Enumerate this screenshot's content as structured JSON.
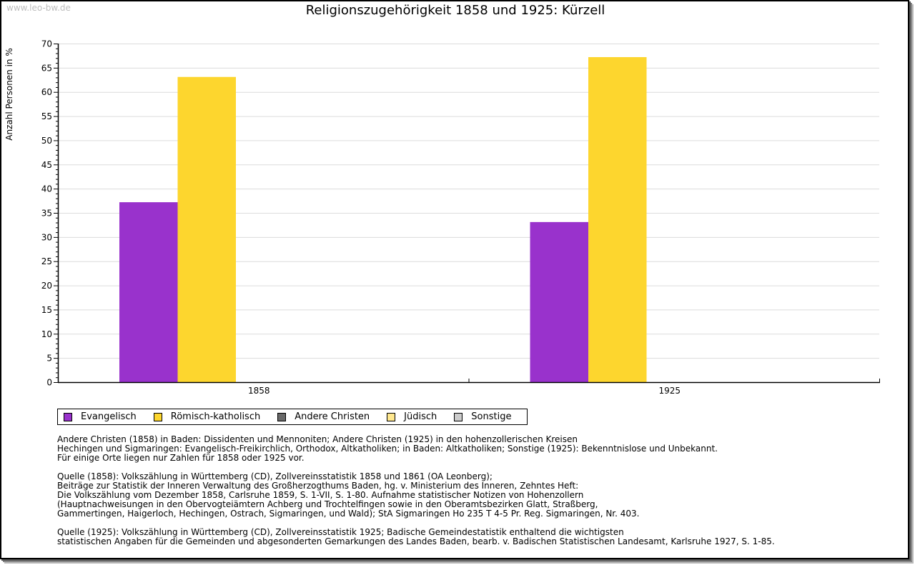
{
  "watermark": "www.leo-bw.de",
  "chart_data": {
    "type": "bar",
    "title": "Religionszugehörigkeit 1858 und 1925: Kürzell",
    "xlabel": "",
    "ylabel": "Anzahl Personen in %",
    "ylim": [
      0,
      70
    ],
    "yticks": [
      0,
      5,
      10,
      15,
      20,
      25,
      30,
      35,
      40,
      45,
      50,
      55,
      60,
      65,
      70
    ],
    "grid": true,
    "categories": [
      "1858",
      "1925"
    ],
    "series": [
      {
        "name": "Evangelisch",
        "color": "#9932cc",
        "values": [
          37.2,
          33.1
        ]
      },
      {
        "name": "Römisch-katholisch",
        "color": "#fdd62e",
        "values": [
          63.1,
          67.2
        ]
      },
      {
        "name": "Andere Christen",
        "color": "#696969",
        "values": [
          0,
          0
        ]
      },
      {
        "name": "Jüdisch",
        "color": "#ffe88f",
        "values": [
          0,
          0
        ]
      },
      {
        "name": "Sonstige",
        "color": "#cccccc",
        "values": [
          0,
          0
        ]
      }
    ],
    "legend_position": "bottom-left"
  },
  "notes": [
    "Andere Christen (1858) in Baden: Dissidenten und Mennoniten; Andere Christen (1925) in den hohenzollerischen Kreisen\nHechingen und Sigmaringen: Evangelisch-Freikirchlich, Orthodox, Altkatholiken; in Baden: Altkatholiken; Sonstige (1925): Bekenntnislose und Unbekannt.\nFür einige Orte liegen nur Zahlen für 1858 oder 1925 vor.",
    "Quelle (1858): Volkszählung in Württemberg (CD), Zollvereinsstatistik 1858 und 1861 (OA Leonberg);\nBeiträge zur Statistik der Inneren Verwaltung des Großherzogthums Baden, hg. v. Ministerium des Inneren, Zehntes Heft:\nDie Volkszählung vom Dezember 1858, Carlsruhe 1859, S. 1-VII, S. 1-80. Aufnahme statistischer Notizen von Hohenzollern\n(Hauptnachweisungen in den Obervogteiämtern Achberg und Trochtelfingen sowie in den Oberamtsbezirken Glatt, Straßberg,\nGammertingen, Haigerloch, Hechingen, Ostrach, Sigmaringen, und Wald); StA Sigmaringen Ho 235 T 4-5 Pr. Reg. Sigmaringen, Nr. 403.",
    "Quelle (1925): Volkszählung in Württemberg (CD), Zollvereinsstatistik 1925; Badische Gemeindestatistik enthaltend die wichtigsten\nstatistischen Angaben für die Gemeinden und abgesonderten Gemarkungen des Landes Baden, bearb. v. Badischen Statistischen Landesamt, Karlsruhe 1927, S. 1-85."
  ]
}
